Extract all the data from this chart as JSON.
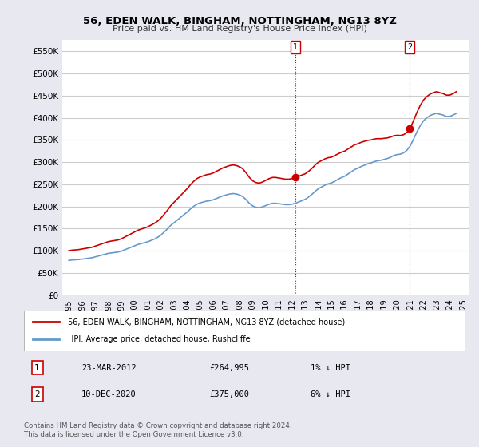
{
  "title": "56, EDEN WALK, BINGHAM, NOTTINGHAM, NG13 8YZ",
  "subtitle": "Price paid vs. HM Land Registry's House Price Index (HPI)",
  "ylabel_ticks": [
    "£0",
    "£50K",
    "£100K",
    "£150K",
    "£200K",
    "£250K",
    "£300K",
    "£350K",
    "£400K",
    "£450K",
    "£500K",
    "£550K"
  ],
  "ylim": [
    0,
    575000
  ],
  "xlim_start": 1994.5,
  "xlim_end": 2025.5,
  "hpi_color": "#6699cc",
  "price_color": "#cc0000",
  "bg_color": "#e8e8f0",
  "plot_bg": "#ffffff",
  "grid_color": "#cccccc",
  "point1_x": 2012.22,
  "point1_y": 264995,
  "point2_x": 2020.95,
  "point2_y": 375000,
  "point_color": "#cc0000",
  "legend_line1": "56, EDEN WALK, BINGHAM, NOTTINGHAM, NG13 8YZ (detached house)",
  "legend_line2": "HPI: Average price, detached house, Rushcliffe",
  "ann1_num": "1",
  "ann1_date": "23-MAR-2012",
  "ann1_price": "£264,995",
  "ann1_hpi": "1% ↓ HPI",
  "ann2_num": "2",
  "ann2_date": "10-DEC-2020",
  "ann2_price": "£375,000",
  "ann2_hpi": "6% ↓ HPI",
  "copyright": "Contains HM Land Registry data © Crown copyright and database right 2024.\nThis data is licensed under the Open Government Licence v3.0.",
  "hpi_data_x": [
    1995,
    1995.25,
    1995.5,
    1995.75,
    1996,
    1996.25,
    1996.5,
    1996.75,
    1997,
    1997.25,
    1997.5,
    1997.75,
    1998,
    1998.25,
    1998.5,
    1998.75,
    1999,
    1999.25,
    1999.5,
    1999.75,
    2000,
    2000.25,
    2000.5,
    2000.75,
    2001,
    2001.25,
    2001.5,
    2001.75,
    2002,
    2002.25,
    2002.5,
    2002.75,
    2003,
    2003.25,
    2003.5,
    2003.75,
    2004,
    2004.25,
    2004.5,
    2004.75,
    2005,
    2005.25,
    2005.5,
    2005.75,
    2006,
    2006.25,
    2006.5,
    2006.75,
    2007,
    2007.25,
    2007.5,
    2007.75,
    2008,
    2008.25,
    2008.5,
    2008.75,
    2009,
    2009.25,
    2009.5,
    2009.75,
    2010,
    2010.25,
    2010.5,
    2010.75,
    2011,
    2011.25,
    2011.5,
    2011.75,
    2012,
    2012.25,
    2012.5,
    2012.75,
    2013,
    2013.25,
    2013.5,
    2013.75,
    2014,
    2014.25,
    2014.5,
    2014.75,
    2015,
    2015.25,
    2015.5,
    2015.75,
    2016,
    2016.25,
    2016.5,
    2016.75,
    2017,
    2017.25,
    2017.5,
    2017.75,
    2018,
    2018.25,
    2018.5,
    2018.75,
    2019,
    2019.25,
    2019.5,
    2019.75,
    2020,
    2020.25,
    2020.5,
    2020.75,
    2021,
    2021.25,
    2021.5,
    2021.75,
    2022,
    2022.25,
    2022.5,
    2022.75,
    2023,
    2023.25,
    2023.5,
    2023.75,
    2024,
    2024.25,
    2024.5
  ],
  "hpi_data_y": [
    78000,
    79000,
    79500,
    80000,
    81000,
    82000,
    83000,
    84000,
    86000,
    88000,
    90000,
    92000,
    94000,
    95000,
    96000,
    97000,
    99000,
    102000,
    105000,
    108000,
    111000,
    114000,
    116000,
    118000,
    120000,
    123000,
    126000,
    130000,
    135000,
    142000,
    149000,
    157000,
    163000,
    169000,
    175000,
    181000,
    187000,
    194000,
    200000,
    205000,
    208000,
    210000,
    212000,
    213000,
    215000,
    218000,
    221000,
    224000,
    226000,
    228000,
    229000,
    228000,
    226000,
    222000,
    215000,
    207000,
    201000,
    198000,
    197000,
    199000,
    202000,
    205000,
    207000,
    207000,
    206000,
    205000,
    204000,
    204000,
    205000,
    207000,
    210000,
    213000,
    216000,
    221000,
    227000,
    234000,
    240000,
    244000,
    248000,
    251000,
    253000,
    257000,
    261000,
    265000,
    268000,
    273000,
    278000,
    283000,
    286000,
    290000,
    293000,
    296000,
    298000,
    301000,
    303000,
    304000,
    306000,
    308000,
    311000,
    315000,
    317000,
    318000,
    321000,
    327000,
    337000,
    352000,
    368000,
    382000,
    393000,
    400000,
    405000,
    408000,
    410000,
    408000,
    406000,
    403000,
    403000,
    406000,
    410000
  ]
}
